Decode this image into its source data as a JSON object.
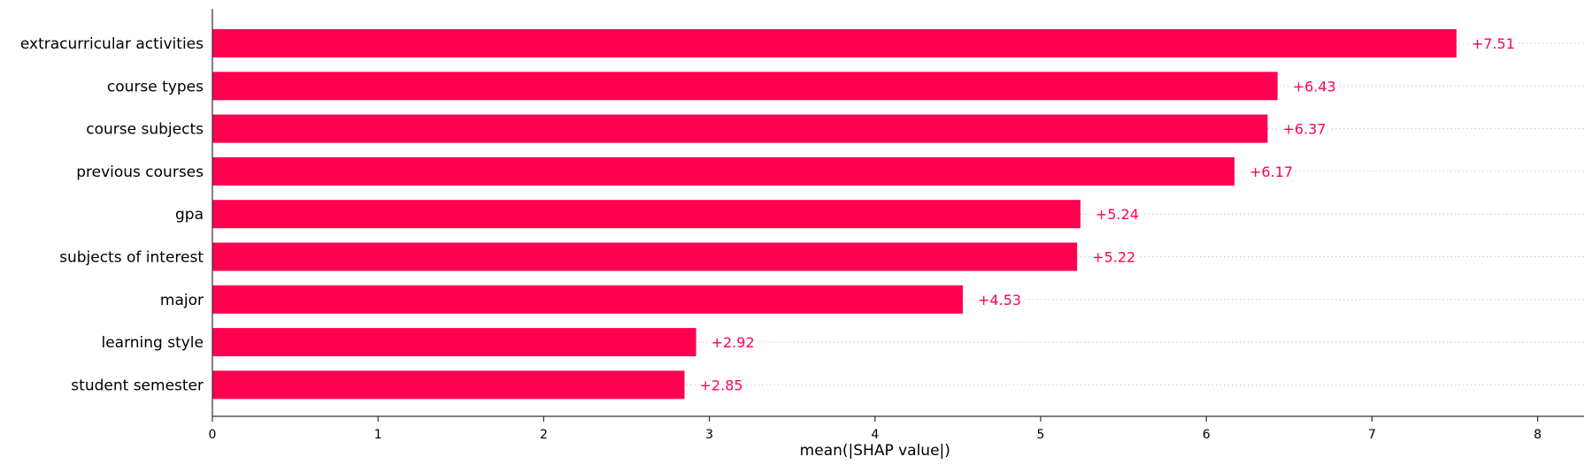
{
  "chart_data": {
    "type": "bar",
    "orientation": "horizontal",
    "categories": [
      "extracurricular activities",
      "course types",
      "course subjects",
      "previous courses",
      "gpa",
      "subjects of interest",
      "major",
      "learning style",
      "student semester"
    ],
    "values": [
      7.51,
      6.43,
      6.37,
      6.17,
      5.24,
      5.22,
      4.53,
      2.92,
      2.85
    ],
    "value_labels": [
      "+7.51",
      "+6.43",
      "+6.37",
      "+6.17",
      "+5.24",
      "+5.22",
      "+4.53",
      "+2.92",
      "+2.85"
    ],
    "xlabel": "mean(|SHAP value|)",
    "ylabel": "",
    "title": "",
    "xlim": [
      0,
      8.3
    ],
    "xticks": [
      0,
      1,
      2,
      3,
      4,
      5,
      6,
      7,
      8
    ],
    "xtick_labels": [
      "0",
      "1",
      "2",
      "3",
      "4",
      "5",
      "6",
      "7",
      "8"
    ],
    "grid": "dotted horizontal lines per row",
    "legend": "none",
    "colors": {
      "bar": "#ff0051",
      "value_label": "#ff0051",
      "axis": "#333333",
      "text": "#000000",
      "gridline": "#cccccc"
    }
  }
}
